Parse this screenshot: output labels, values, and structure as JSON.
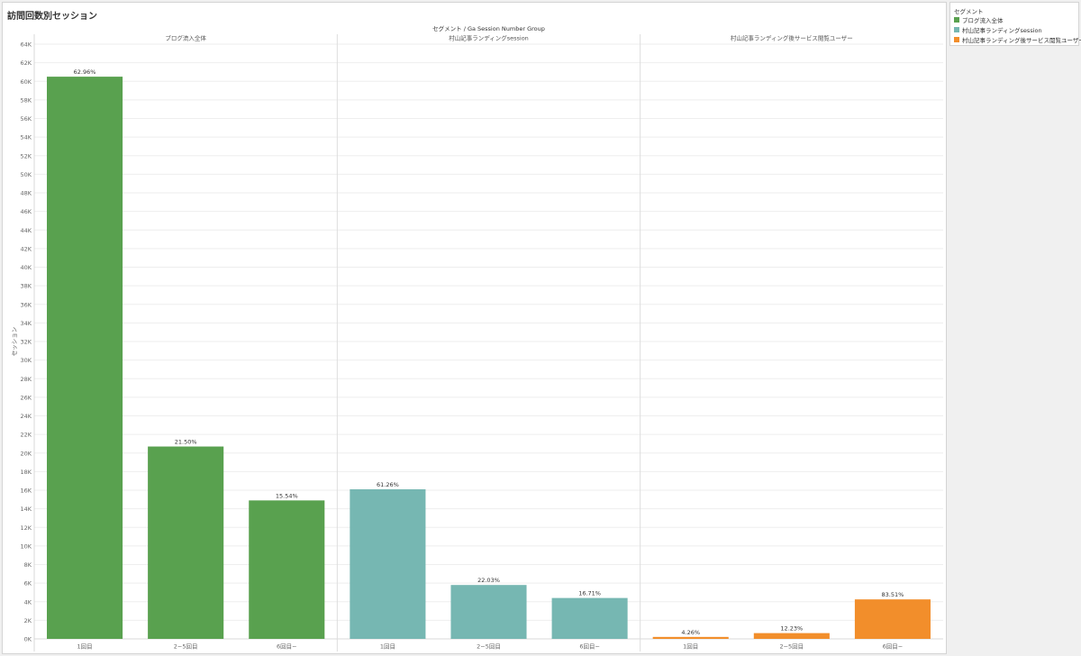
{
  "view": {
    "title": "訪問回数別セッション"
  },
  "legend": {
    "title": "セグメント",
    "items": [
      {
        "label": "ブログ流入全体",
        "color": "#59a14f"
      },
      {
        "label": "村山記事ランディングsession",
        "color": "#76b7b2"
      },
      {
        "label": "村山記事ランディング後サービス閲覧ユーザー",
        "color": "#f28e2b"
      }
    ]
  },
  "chart_data": {
    "type": "bar",
    "column_header": "セグメント / Ga Session Number Group",
    "ylabel": "セッション",
    "ylim": [
      0,
      64000
    ],
    "ytick_step": 2000,
    "y_tick_labels": [
      "0K",
      "2K",
      "4K",
      "6K",
      "8K",
      "10K",
      "12K",
      "14K",
      "16K",
      "18K",
      "20K",
      "22K",
      "24K",
      "26K",
      "28K",
      "30K",
      "32K",
      "34K",
      "36K",
      "38K",
      "40K",
      "42K",
      "44K",
      "46K",
      "48K",
      "50K",
      "52K",
      "54K",
      "56K",
      "58K",
      "60K",
      "62K",
      "64K"
    ],
    "categories": [
      "1回目",
      "2~5回目",
      "6回目~"
    ],
    "grid": true,
    "legend_position": "right",
    "panels": [
      {
        "name": "ブログ流入全体",
        "color": "#59a14f",
        "values": [
          60500,
          20700,
          14900
        ],
        "labels": [
          "62.96%",
          "21.50%",
          "15.54%"
        ]
      },
      {
        "name": "村山記事ランディングsession",
        "color": "#76b7b2",
        "values": [
          16100,
          5800,
          4400
        ],
        "labels": [
          "61.26%",
          "22.03%",
          "16.71%"
        ]
      },
      {
        "name": "村山記事ランディング後サービス閲覧ユーザー",
        "color": "#f28e2b",
        "values": [
          210,
          620,
          4250
        ],
        "labels": [
          "4.26%",
          "12.23%",
          "83.51%"
        ]
      }
    ]
  }
}
